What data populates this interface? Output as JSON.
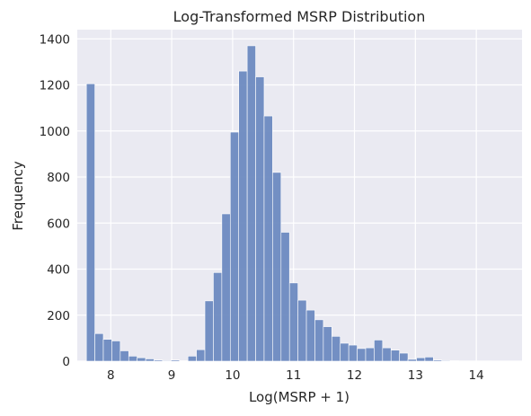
{
  "chart_data": {
    "type": "bar",
    "title": "Log-Transformed MSRP Distribution",
    "xlabel": "Log(MSRP + 1)",
    "ylabel": "Frequency",
    "xlim": [
      7.45,
      14.75
    ],
    "ylim": [
      0,
      1440
    ],
    "xticks": [
      8,
      9,
      10,
      11,
      12,
      13,
      14
    ],
    "yticks": [
      0,
      200,
      400,
      600,
      800,
      1000,
      1200,
      1400
    ],
    "bin_start": 7.6,
    "bin_width": 0.1389,
    "values": [
      1205,
      120,
      95,
      88,
      45,
      22,
      15,
      10,
      5,
      3,
      5,
      2,
      22,
      50,
      262,
      385,
      640,
      995,
      1260,
      1370,
      1235,
      1065,
      820,
      560,
      340,
      265,
      222,
      180,
      150,
      108,
      78,
      70,
      55,
      58,
      92,
      58,
      48,
      35,
      8,
      15,
      18,
      5,
      3,
      2,
      1,
      1,
      1,
      1,
      0,
      0
    ],
    "grid": true,
    "background_color": "#eaeaf2",
    "bar_color": "#6d8ac0"
  }
}
